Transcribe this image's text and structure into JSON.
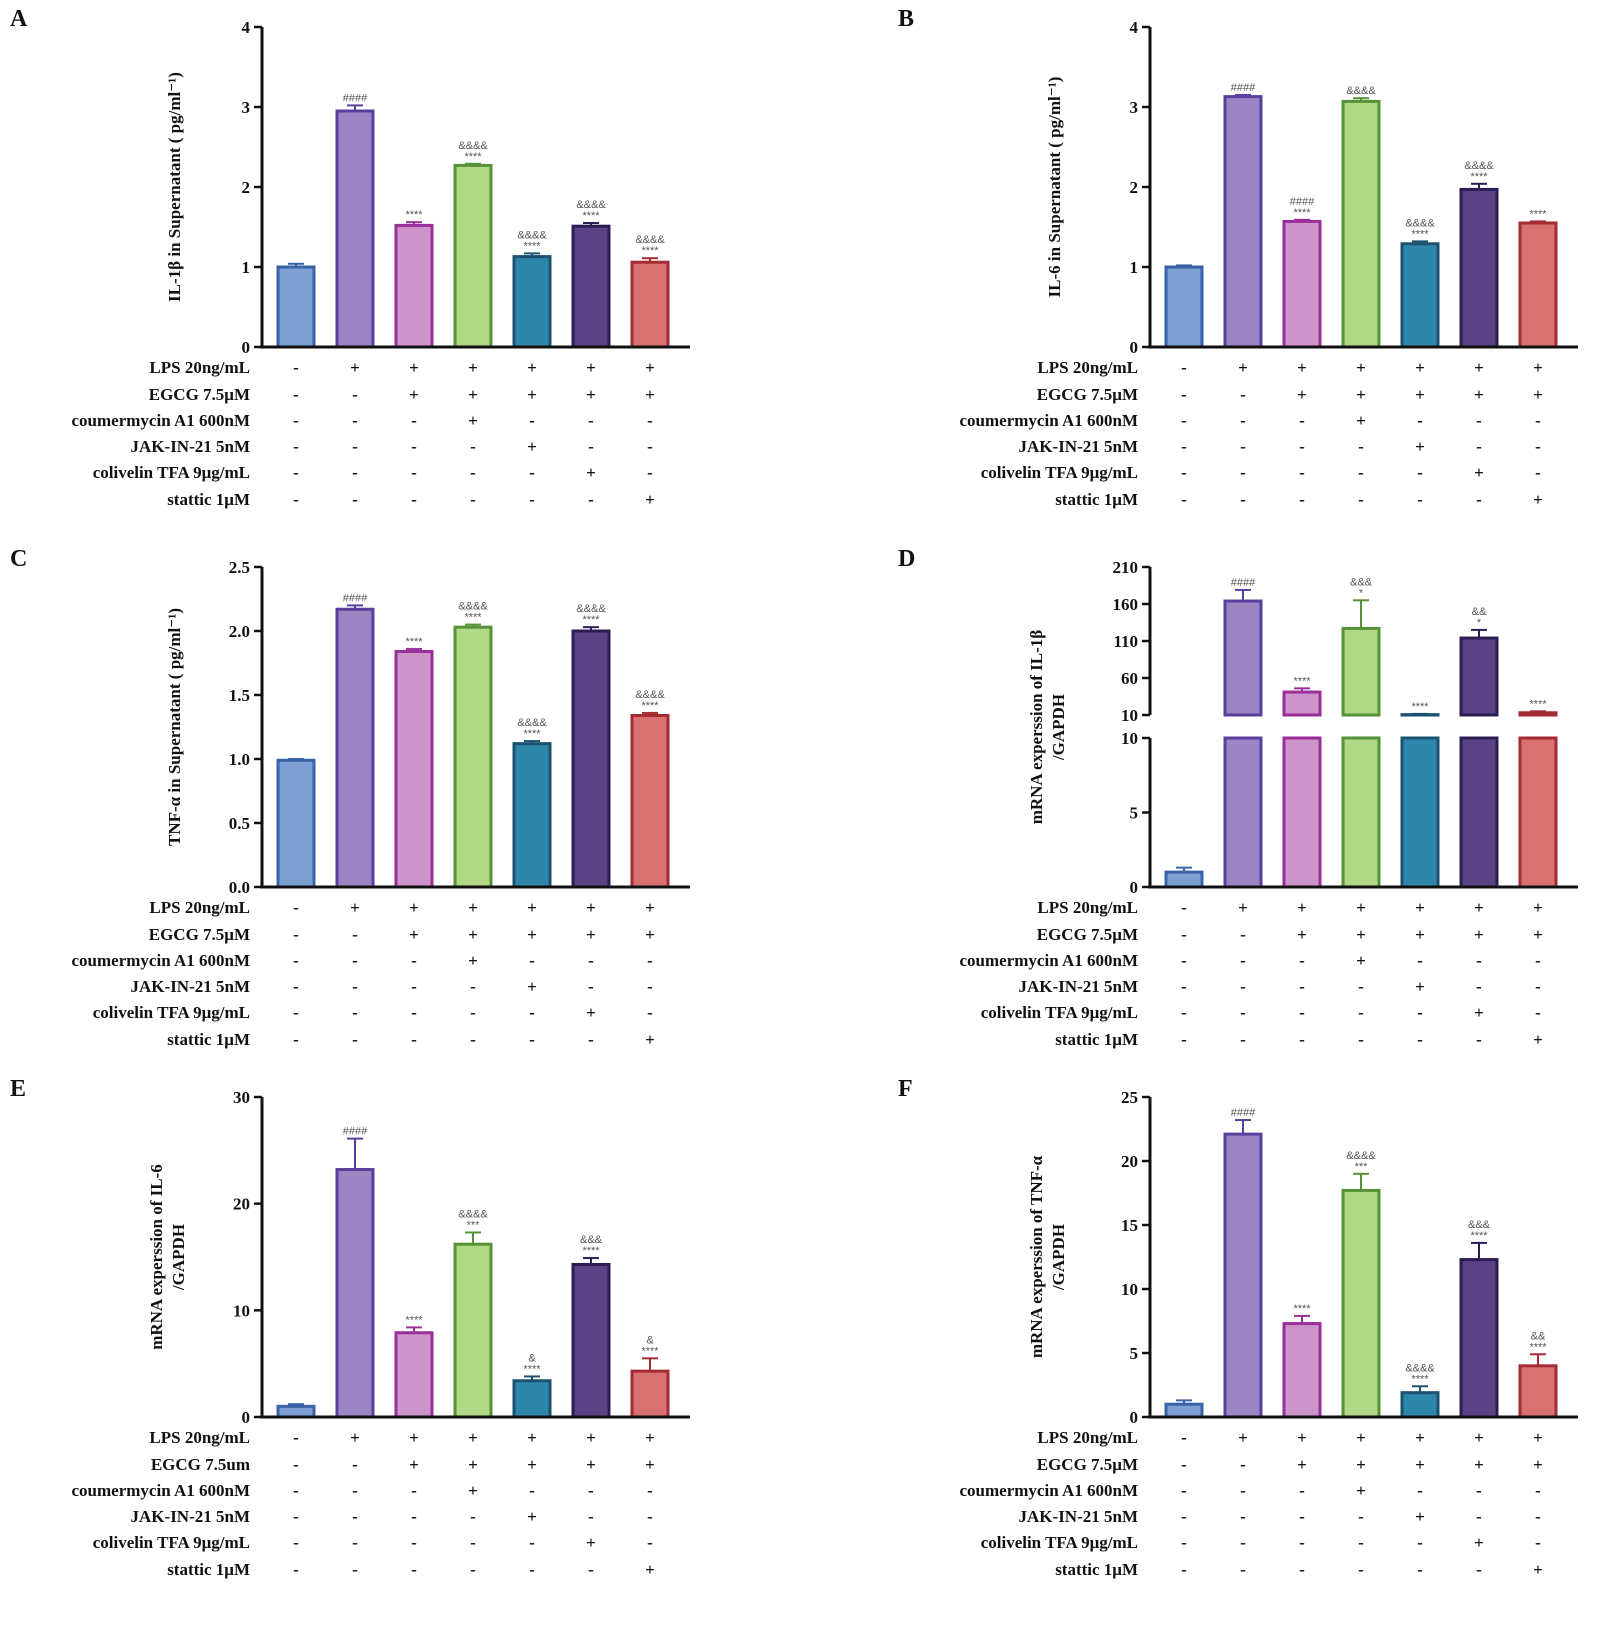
{
  "colors": {
    "fills": [
      "#7ba0d1",
      "#9a86c3",
      "#cd94c9",
      "#b1d885",
      "#2e86a8",
      "#5a4385",
      "#d87171"
    ],
    "edges": [
      "#3a62a6",
      "#5b3f9c",
      "#9a2e9a",
      "#559238",
      "#1a5270",
      "#2e1c55",
      "#a42a33"
    ]
  },
  "treatment_rows": [
    {
      "label": "LPS 20ng/mL",
      "signs": [
        "-",
        "+",
        "+",
        "+",
        "+",
        "+",
        "+"
      ]
    },
    {
      "label": "EGCG 7.5μM",
      "signs": [
        "-",
        "-",
        "+",
        "+",
        "+",
        "+",
        "+"
      ]
    },
    {
      "label": "coumermycin A1 600nM",
      "signs": [
        "-",
        "-",
        "-",
        "+",
        "-",
        "-",
        "-"
      ]
    },
    {
      "label": "JAK-IN-21 5nM",
      "signs": [
        "-",
        "-",
        "-",
        "-",
        "+",
        "-",
        "-"
      ]
    },
    {
      "label": "colivelin TFA 9μg/mL",
      "signs": [
        "-",
        "-",
        "-",
        "-",
        "-",
        "+",
        "-"
      ]
    },
    {
      "label": "stattic 1μM",
      "signs": [
        "-",
        "-",
        "-",
        "-",
        "-",
        "-",
        "+"
      ]
    }
  ],
  "egcg_label_E": "EGCG 7.5um",
  "chart_data": [
    {
      "panel": "A",
      "type": "bar",
      "ylabel": "IL-1β in Supernatant ( pg/ml⁻¹)",
      "ylim": [
        0,
        4
      ],
      "yticks": [
        "0",
        "1",
        "2",
        "3",
        "4"
      ],
      "values": [
        1.0,
        2.95,
        1.52,
        2.27,
        1.13,
        1.51,
        1.06
      ],
      "errors": [
        0.04,
        0.07,
        0.04,
        0.02,
        0.04,
        0.04,
        0.05
      ],
      "annotations": [
        [],
        [
          "####"
        ],
        [
          "****"
        ],
        [
          "&&&&",
          "****"
        ],
        [
          "&&&&",
          "****"
        ],
        [
          "&&&&",
          "****"
        ],
        [
          "&&&&",
          "****"
        ]
      ]
    },
    {
      "panel": "B",
      "type": "bar",
      "ylabel": "IL-6 in Supernatant ( pg/ml⁻¹)",
      "ylim": [
        0,
        4
      ],
      "yticks": [
        "0",
        "1",
        "2",
        "3",
        "4"
      ],
      "values": [
        1.0,
        3.13,
        1.57,
        3.07,
        1.29,
        1.97,
        1.55
      ],
      "errors": [
        0.02,
        0.02,
        0.02,
        0.04,
        0.03,
        0.07,
        0.02
      ],
      "annotations": [
        [],
        [
          "####"
        ],
        [
          "####",
          "****"
        ],
        [
          "&&&&"
        ],
        [
          "&&&&",
          "****"
        ],
        [
          "&&&&",
          "****"
        ],
        [
          "****"
        ]
      ]
    },
    {
      "panel": "C",
      "type": "bar",
      "ylabel": "TNF-α in Supernatant ( pg/ml⁻¹)",
      "ylim": [
        0,
        2.5
      ],
      "yticks": [
        "0.0",
        "0.5",
        "1.0",
        "1.5",
        "2.0",
        "2.5"
      ],
      "values": [
        0.99,
        2.17,
        1.84,
        2.03,
        1.12,
        2.0,
        1.34
      ],
      "errors": [
        0.01,
        0.03,
        0.02,
        0.02,
        0.02,
        0.03,
        0.02
      ],
      "annotations": [
        [],
        [
          "####"
        ],
        [
          "****"
        ],
        [
          "&&&&",
          "****"
        ],
        [
          "&&&&",
          "****"
        ],
        [
          "&&&&",
          "****"
        ],
        [
          "&&&&",
          "****"
        ]
      ]
    },
    {
      "panel": "D",
      "type": "bar",
      "ylabel": "mRNA experssion of  IL-1β /GAPDH",
      "broken_axis": true,
      "lower_ylim": [
        0,
        10
      ],
      "lower_yticks": [
        "0",
        "5",
        "10"
      ],
      "upper_ylim": [
        10,
        210
      ],
      "upper_yticks": [
        "10",
        "60",
        "110",
        "160",
        "210"
      ],
      "values": [
        1.0,
        164,
        41,
        127,
        10.5,
        114,
        13
      ],
      "errors": [
        0.3,
        15,
        5,
        38,
        1,
        11,
        2
      ],
      "annotations": [
        [],
        [
          "####"
        ],
        [
          "****"
        ],
        [
          "&&&",
          "*"
        ],
        [
          "****"
        ],
        [
          "&&",
          "*"
        ],
        [
          "****"
        ]
      ]
    },
    {
      "panel": "E",
      "type": "bar",
      "ylabel": "mRNA experssion of IL-6 /GAPDH",
      "ylim": [
        0,
        30
      ],
      "yticks": [
        "0",
        "10",
        "20",
        "30"
      ],
      "values": [
        1.0,
        23.2,
        7.9,
        16.2,
        3.4,
        14.3,
        4.3
      ],
      "errors": [
        0.2,
        2.9,
        0.5,
        1.1,
        0.4,
        0.6,
        1.2
      ],
      "annotations": [
        [],
        [
          "####"
        ],
        [
          "****"
        ],
        [
          "&&&&",
          "***"
        ],
        [
          "&",
          "****"
        ],
        [
          "&&&",
          "****"
        ],
        [
          "&",
          "****"
        ]
      ]
    },
    {
      "panel": "F",
      "type": "bar",
      "ylabel": "mRNA experssion of  TNF-α /GAPDH",
      "ylim": [
        0,
        25
      ],
      "yticks": [
        "0",
        "5",
        "10",
        "15",
        "20",
        "25"
      ],
      "values": [
        1.0,
        22.1,
        7.3,
        17.7,
        1.9,
        12.3,
        4.0
      ],
      "errors": [
        0.3,
        1.1,
        0.6,
        1.3,
        0.5,
        1.3,
        0.9
      ],
      "annotations": [
        [],
        [
          "####"
        ],
        [
          "****"
        ],
        [
          "&&&&",
          "***"
        ],
        [
          "&&&&",
          "****"
        ],
        [
          "&&&",
          "****"
        ],
        [
          "&&",
          "****"
        ]
      ]
    }
  ]
}
